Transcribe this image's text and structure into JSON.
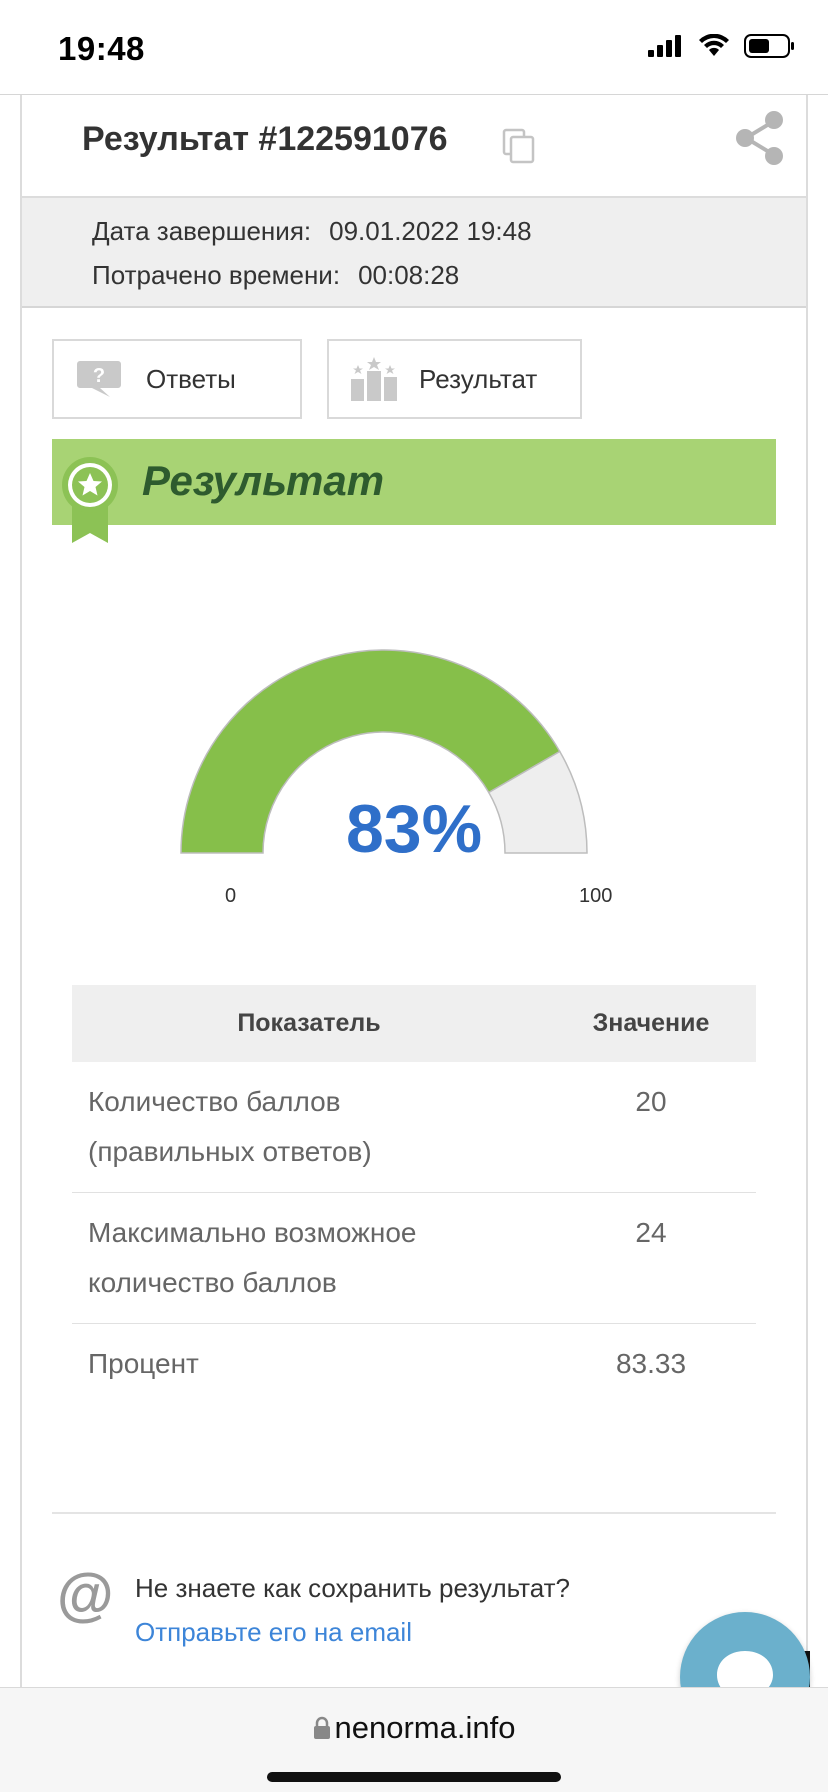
{
  "status_bar": {
    "time": "19:48"
  },
  "header": {
    "title": "Результат #122591076"
  },
  "info": {
    "finish_date_label": "Дата завершения:",
    "finish_date_value": "09.01.2022 19:48",
    "time_spent_label": "Потрачено времени:",
    "time_spent_value": "00:08:28"
  },
  "tabs": [
    {
      "label": "Ответы",
      "icon": "question-bubble-icon"
    },
    {
      "label": "Результат",
      "icon": "podium-icon"
    }
  ],
  "banner": {
    "title": "Результат"
  },
  "gauge": {
    "value_text": "83%",
    "min_label": "0",
    "max_label": "100",
    "fraction": 0.8333,
    "fill_color": "#86bf4a",
    "rest_color": "#eeeeee"
  },
  "table": {
    "headers": [
      "Показатель",
      "Значение"
    ],
    "rows": [
      {
        "label_line1": "Количество баллов",
        "label_line2": "(правильных ответов)",
        "value": "20"
      },
      {
        "label_line1": "Максимально возможное",
        "label_line2": "количество баллов",
        "value": "24"
      },
      {
        "label_line1": "Процент",
        "label_line2": "",
        "value": "83.33"
      }
    ]
  },
  "save_hint": {
    "question": "Не знаете как сохранить результат?",
    "link": "Отправьте его на email"
  },
  "browser": {
    "url": "nenorma.info"
  },
  "colors": {
    "accent_green": "#a8d374",
    "banner_text": "#2e5b2e",
    "value_blue": "#2f6fc9",
    "link_blue": "#3d85d8",
    "chat_blue": "#6bb0cc"
  }
}
